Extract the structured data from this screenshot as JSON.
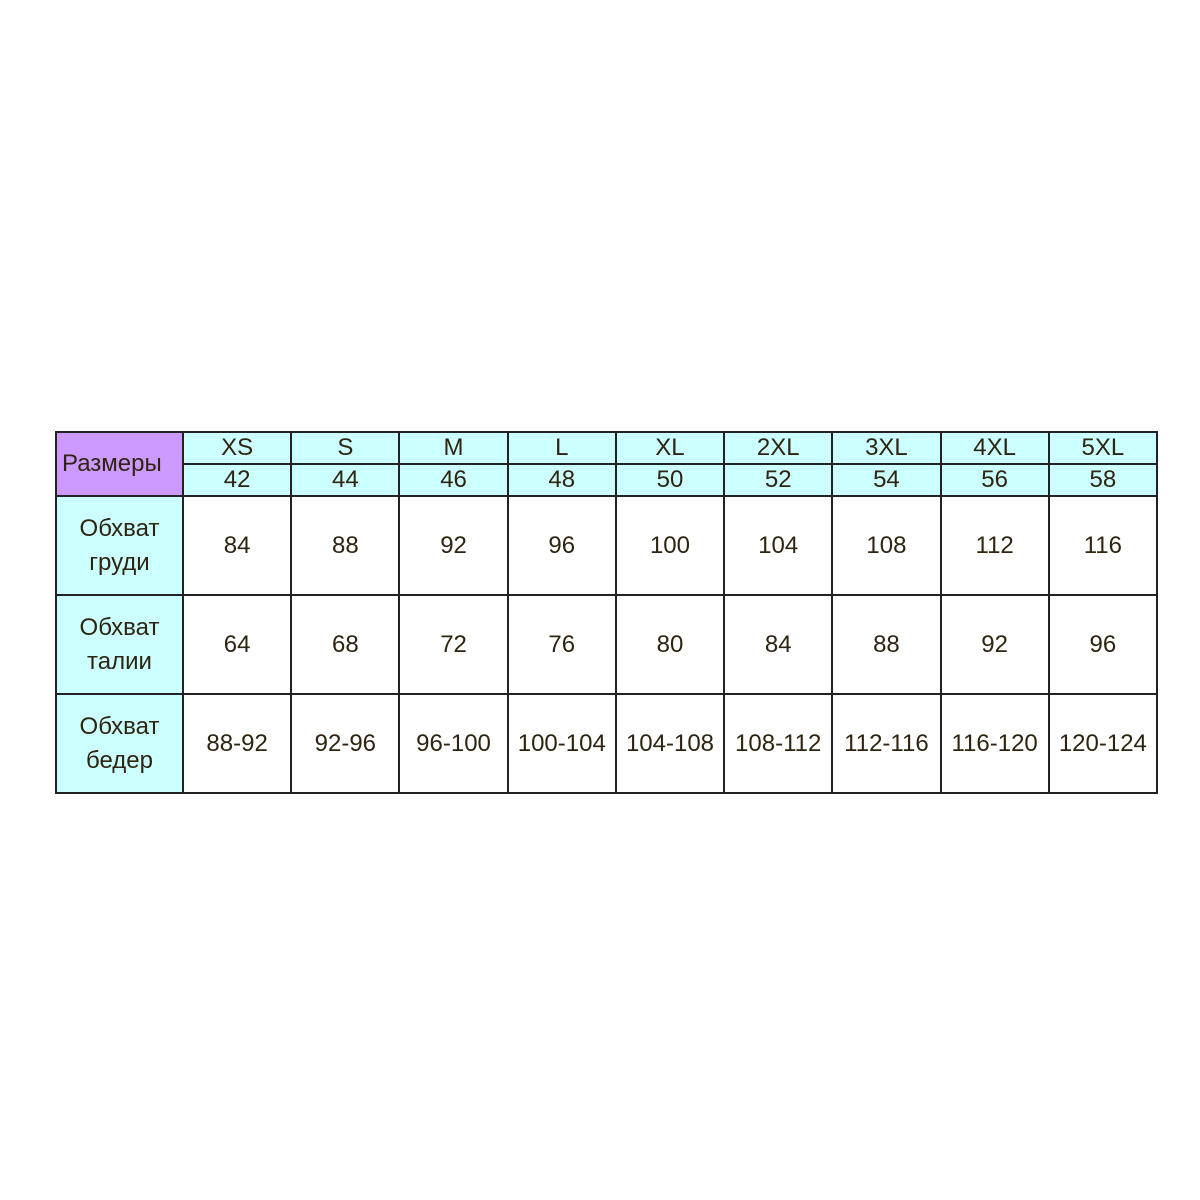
{
  "table": {
    "corner_label": "Размеры",
    "sizes": [
      "XS",
      "S",
      "M",
      "L",
      "XL",
      "2XL",
      "3XL",
      "4XL",
      "5XL"
    ],
    "ru_sizes": [
      "42",
      "44",
      "46",
      "48",
      "50",
      "52",
      "54",
      "56",
      "58"
    ],
    "rows": [
      {
        "label_line1": "Обхват",
        "label_line2": "груди",
        "values": [
          "84",
          "88",
          "92",
          "96",
          "100",
          "104",
          "108",
          "112",
          "116"
        ]
      },
      {
        "label_line1": "Обхват",
        "label_line2": "талии",
        "values": [
          "64",
          "68",
          "72",
          "76",
          "80",
          "84",
          "88",
          "92",
          "96"
        ]
      },
      {
        "label_line1": "Обхват",
        "label_line2": "бедер",
        "values": [
          "88-92",
          "92-96",
          "96-100",
          "100-104",
          "104-108",
          "108-112",
          "112-116",
          "116-120",
          "120-124"
        ]
      }
    ]
  },
  "colors": {
    "corner": "#cc99ff",
    "header": "#ccffff",
    "text": "#2e2410",
    "border": "#222222"
  }
}
